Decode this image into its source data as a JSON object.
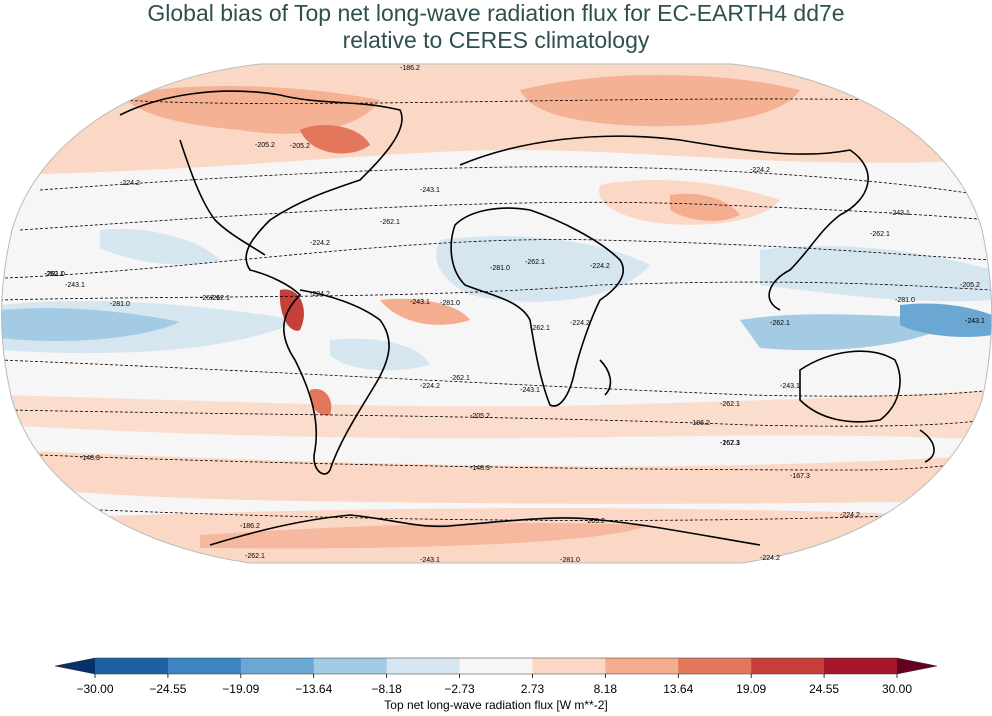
{
  "title": {
    "line1": "Global bias of Top net long-wave radiation flux for EC-EARTH4 dd7e",
    "line2": "relative to CERES climatology"
  },
  "colorbar": {
    "label": "Top net long-wave radiation flux [W m**-2]",
    "ticks": [
      "−30.00",
      "−24.55",
      "−19.09",
      "−13.64",
      "−8.18",
      "−2.73",
      "2.73",
      "8.18",
      "13.64",
      "19.09",
      "24.55",
      "30.00"
    ],
    "colors": [
      "#1f5fa3",
      "#3d84c2",
      "#6aa7d3",
      "#a3cbe4",
      "#d5e6f1",
      "#f6f6f6",
      "#fbd8c6",
      "#f4ad8e",
      "#e2775c",
      "#c6403a",
      "#a3162b"
    ],
    "under_color": "#08306b",
    "over_color": "#67001f"
  },
  "contour_labels": [
    "-186.2",
    "-205.2",
    "-224.2",
    "-243.1",
    "-262.1",
    "-281.0",
    "-205.2",
    "-224.2",
    "-243.1",
    "-262.1",
    "-262.1",
    "-243.1",
    "-281.0",
    "-262.1",
    "-224.2",
    "-243.1",
    "-262.1",
    "-224.2",
    "-224.2",
    "-262.1",
    "-281.0",
    "-281.0",
    "-262.1",
    "-243.1",
    "-224.2",
    "-205.2",
    "-186.2",
    "-167.3",
    "-148.3",
    "-148.3",
    "-167.3",
    "-186.2",
    "-205.2",
    "-224.2",
    "-243.1",
    "-262.1",
    "-281.0",
    "-262.1",
    "-243.1",
    "-224.2",
    "-262.1",
    "-205.2",
    "-243.1",
    "-262.1",
    "-281.0",
    "-262.1",
    "-224.2"
  ]
}
